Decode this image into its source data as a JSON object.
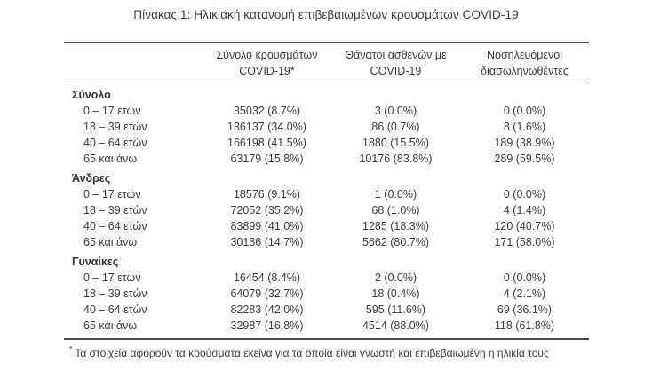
{
  "title": "Πίνακας 1: Ηλικιακή κατανομή επιβεβαιωμένων κρουσμάτων COVID-19",
  "colors": {
    "text": "#3c3c3c",
    "rule": "#4b4b4b",
    "background": "#ffffff"
  },
  "table": {
    "columns": [
      {
        "line1": "Σύνολο κρουσμάτων",
        "line2": "COVID-19*"
      },
      {
        "line1": "Θάνατοι ασθενών με",
        "line2": "COVID-19"
      },
      {
        "line1": "Νοσηλευόμενοι",
        "line2": "διασωληνωθέντες"
      }
    ],
    "sections": [
      {
        "label": "Σύνολο",
        "rows": [
          {
            "label": "0 – 17 ετών",
            "cases": "35032 (8.7%)",
            "deaths": "3 (0.0%)",
            "intubated": "0 (0.0%)"
          },
          {
            "label": "18 – 39 ετών",
            "cases": "136137 (34.0%)",
            "deaths": "86 (0.7%)",
            "intubated": "8 (1.6%)"
          },
          {
            "label": "40 – 64 ετών",
            "cases": "166198 (41.5%)",
            "deaths": "1880 (15.5%)",
            "intubated": "189 (38.9%)"
          },
          {
            "label": "65 και άνω",
            "cases": "63179 (15.8%)",
            "deaths": "10176 (83.8%)",
            "intubated": "289 (59.5%)"
          }
        ]
      },
      {
        "label": "Άνδρες",
        "rows": [
          {
            "label": "0 – 17 ετών",
            "cases": "18576 (9.1%)",
            "deaths": "1 (0.0%)",
            "intubated": "0 (0.0%)"
          },
          {
            "label": "18 – 39 ετών",
            "cases": "72052 (35.2%)",
            "deaths": "68 (1.0%)",
            "intubated": "4 (1.4%)"
          },
          {
            "label": "40 – 64 ετών",
            "cases": "83899 (41.0%)",
            "deaths": "1285 (18.3%)",
            "intubated": "120 (40.7%)"
          },
          {
            "label": "65 και άνω",
            "cases": "30186 (14.7%)",
            "deaths": "5662 (80.7%)",
            "intubated": "171 (58.0%)"
          }
        ]
      },
      {
        "label": "Γυναίκες",
        "rows": [
          {
            "label": "0 – 17 ετών",
            "cases": "16454 (8.4%)",
            "deaths": "2 (0.0%)",
            "intubated": "0 (0.0%)"
          },
          {
            "label": "18 – 39 ετών",
            "cases": "64079 (32.7%)",
            "deaths": "18 (0.4%)",
            "intubated": "4 (2.1%)"
          },
          {
            "label": "40 – 64 ετών",
            "cases": "82283 (42.0%)",
            "deaths": "595 (11.6%)",
            "intubated": "69 (36.1%)"
          },
          {
            "label": "65 και άνω",
            "cases": "32987 (16.8%)",
            "deaths": "4514 (88.0%)",
            "intubated": "118 (61.8%)"
          }
        ]
      }
    ]
  },
  "footnote": {
    "marker": "*",
    "text": "Τα στοιχεία αφορούν τα κρούσματα εκείνα για τα οποία είναι γνωστή και επιβεβαιωμένη η ηλικία τους"
  }
}
